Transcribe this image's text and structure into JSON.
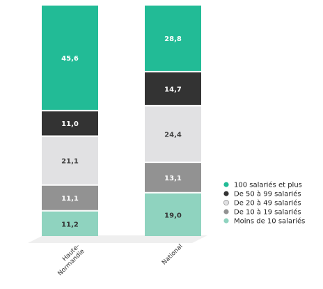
{
  "chart_data": {
    "type": "bar",
    "stacked": true,
    "categories": [
      "Haute-Normandie",
      "National"
    ],
    "category_label_lines": [
      [
        "Haute-",
        "Normandie"
      ],
      [
        "National"
      ]
    ],
    "series": [
      {
        "name": "Moins de 10 salariés",
        "color": "#8fd3bf",
        "label_color": "#333333",
        "values": [
          11.2,
          19.0
        ]
      },
      {
        "name": "De 10 à 19 salariés",
        "color": "#929292",
        "label_color": "#ffffff",
        "values": [
          11.1,
          13.1
        ]
      },
      {
        "name": "De 20 à 49 salariés",
        "color": "#e1e1e3",
        "label_color": "#444444",
        "values": [
          21.1,
          24.4
        ]
      },
      {
        "name": "De 50 à 99 salariés",
        "color": "#333333",
        "label_color": "#ffffff",
        "values": [
          11.0,
          14.7
        ]
      },
      {
        "name": "100 salariés et plus",
        "color": "#22bb96",
        "label_color": "#ffffff",
        "values": [
          45.6,
          28.8
        ]
      }
    ],
    "value_labels": [
      [
        "11,2",
        "11,1",
        "21,1",
        "11,0",
        "45,6"
      ],
      [
        "19,0",
        "13,1",
        "24,4",
        "14,7",
        "28,8"
      ]
    ],
    "legend": {
      "position": "right",
      "order": [
        4,
        3,
        2,
        1,
        0
      ]
    },
    "ylim": [
      0,
      100
    ],
    "grid": false,
    "title": "",
    "xlabel": "",
    "ylabel": ""
  }
}
